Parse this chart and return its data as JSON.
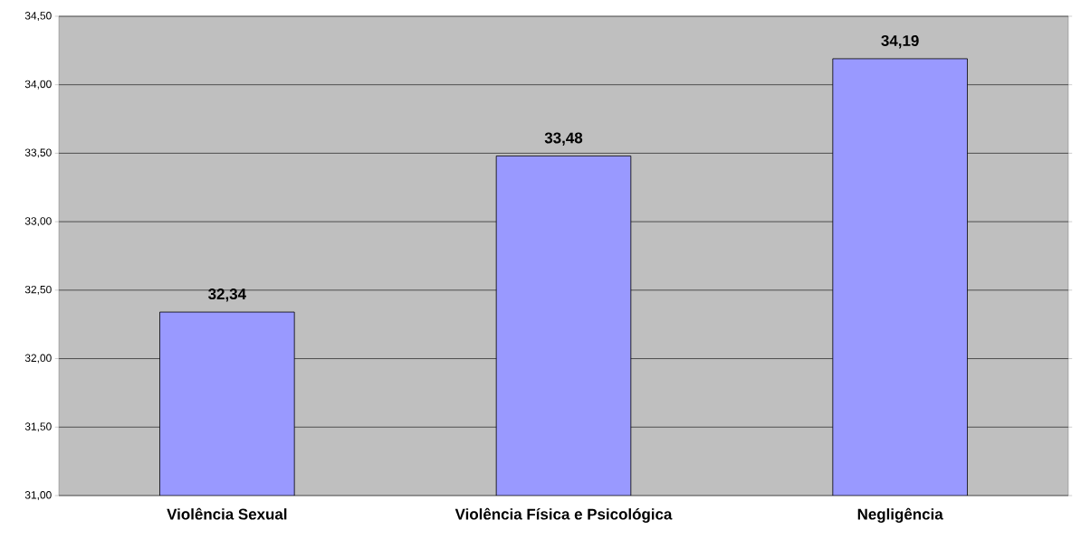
{
  "chart_data": {
    "type": "bar",
    "categories": [
      "Violência Sexual",
      "Violência Física e Psicológica",
      "Negligência"
    ],
    "values": [
      32.34,
      33.48,
      34.19
    ],
    "value_labels": [
      "32,34",
      "33,48",
      "34,19"
    ],
    "color": "#9999ff",
    "ylim": [
      31,
      34.5
    ],
    "yticks": [
      {
        "value": 31,
        "label": "31,00"
      },
      {
        "value": 31.5,
        "label": "31,50"
      },
      {
        "value": 32,
        "label": "32,00"
      },
      {
        "value": 32.5,
        "label": "32,50"
      },
      {
        "value": 33,
        "label": "33,00"
      },
      {
        "value": 33.5,
        "label": "33,50"
      },
      {
        "value": 34,
        "label": "34,00"
      },
      {
        "value": 34.5,
        "label": "34,50"
      }
    ],
    "grid": "y"
  }
}
